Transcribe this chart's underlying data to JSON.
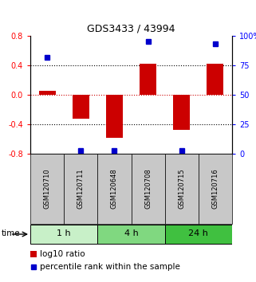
{
  "title": "GDS3433 / 43994",
  "samples": [
    "GSM120710",
    "GSM120711",
    "GSM120648",
    "GSM120708",
    "GSM120715",
    "GSM120716"
  ],
  "log10_ratio": [
    0.05,
    -0.32,
    -0.58,
    0.42,
    -0.48,
    0.42
  ],
  "percentile_rank": [
    0.82,
    0.03,
    0.03,
    0.95,
    0.03,
    0.93
  ],
  "groups": [
    {
      "label": "1 h",
      "indices": [
        0,
        1
      ],
      "color": "#c8f0c8"
    },
    {
      "label": "4 h",
      "indices": [
        2,
        3
      ],
      "color": "#80d880"
    },
    {
      "label": "24 h",
      "indices": [
        4,
        5
      ],
      "color": "#40c040"
    }
  ],
  "ylim": [
    -0.8,
    0.8
  ],
  "yticks_left": [
    -0.8,
    -0.4,
    0.0,
    0.4,
    0.8
  ],
  "yticks_right": [
    0,
    25,
    50,
    75,
    100
  ],
  "bar_color": "#cc0000",
  "dot_color": "#0000cc",
  "zero_line_color": "#cc0000",
  "grid_color": "#000000",
  "bg_color": "#ffffff",
  "sample_bg": "#c8c8c8",
  "legend_bar_color": "#cc0000",
  "legend_dot_color": "#0000cc",
  "figsize": [
    3.21,
    3.54
  ],
  "dpi": 100
}
